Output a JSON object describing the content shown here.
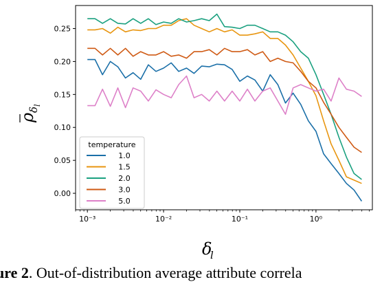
{
  "chart_data": {
    "type": "line",
    "xlabel_base": "δ",
    "xlabel_sub": "l",
    "ylabel_base": "ρ",
    "ylabel_sub": "δ",
    "ylabel_subsub": "l",
    "xscale": "log",
    "xlim": [
      0.0007,
      5.5
    ],
    "ylim": [
      -0.025,
      0.285
    ],
    "x_ticks": [
      {
        "v": 0.001,
        "label": "10⁻³"
      },
      {
        "v": 0.01,
        "label": "10⁻²"
      },
      {
        "v": 0.1,
        "label": "10⁻¹"
      },
      {
        "v": 1,
        "label": "10⁰"
      }
    ],
    "y_ticks": [
      {
        "v": 0.0,
        "label": "0.00"
      },
      {
        "v": 0.05,
        "label": "0.05"
      },
      {
        "v": 0.1,
        "label": "0.10"
      },
      {
        "v": 0.15,
        "label": "0.15"
      },
      {
        "v": 0.2,
        "label": "0.20"
      },
      {
        "v": 0.25,
        "label": "0.25"
      }
    ],
    "grid": false,
    "legend": {
      "title": "temperature",
      "location": "lower-left"
    },
    "x": [
      0.001,
      0.00126,
      0.00158,
      0.002,
      0.00251,
      0.00316,
      0.00398,
      0.00501,
      0.00631,
      0.00794,
      0.01,
      0.0126,
      0.0158,
      0.02,
      0.0251,
      0.0316,
      0.0398,
      0.0501,
      0.0631,
      0.0794,
      0.1,
      0.126,
      0.158,
      0.2,
      0.251,
      0.316,
      0.398,
      0.501,
      0.631,
      0.794,
      1.0,
      1.26,
      1.58,
      2.0,
      2.51,
      3.16,
      3.98
    ],
    "series": [
      {
        "name": "1.0",
        "color": "#1a6fa8",
        "values": [
          0.203,
          0.203,
          0.18,
          0.2,
          0.192,
          0.175,
          0.183,
          0.173,
          0.195,
          0.185,
          0.19,
          0.198,
          0.185,
          0.19,
          0.182,
          0.193,
          0.192,
          0.196,
          0.195,
          0.188,
          0.17,
          0.178,
          0.172,
          0.155,
          0.18,
          0.165,
          0.137,
          0.152,
          0.135,
          0.11,
          0.094,
          0.06,
          0.045,
          0.03,
          0.015,
          0.005,
          -0.012
        ]
      },
      {
        "name": "1.5",
        "color": "#e8950f",
        "values": [
          0.248,
          0.248,
          0.25,
          0.243,
          0.252,
          0.245,
          0.248,
          0.247,
          0.25,
          0.25,
          0.255,
          0.255,
          0.262,
          0.265,
          0.255,
          0.25,
          0.245,
          0.25,
          0.245,
          0.248,
          0.24,
          0.24,
          0.242,
          0.245,
          0.235,
          0.235,
          0.225,
          0.21,
          0.19,
          0.17,
          0.148,
          0.11,
          0.075,
          0.05,
          0.025,
          0.02,
          0.015
        ]
      },
      {
        "name": "2.0",
        "color": "#1aa07f",
        "values": [
          0.265,
          0.265,
          0.258,
          0.265,
          0.258,
          0.257,
          0.265,
          0.258,
          0.265,
          0.256,
          0.26,
          0.258,
          0.265,
          0.26,
          0.262,
          0.265,
          0.262,
          0.272,
          0.253,
          0.252,
          0.25,
          0.255,
          0.255,
          0.25,
          0.245,
          0.245,
          0.24,
          0.23,
          0.215,
          0.205,
          0.18,
          0.15,
          0.12,
          0.085,
          0.055,
          0.03,
          0.021
        ]
      },
      {
        "name": "3.0",
        "color": "#cf5a14",
        "values": [
          0.22,
          0.22,
          0.21,
          0.22,
          0.21,
          0.22,
          0.208,
          0.215,
          0.21,
          0.21,
          0.215,
          0.208,
          0.21,
          0.205,
          0.215,
          0.215,
          0.218,
          0.21,
          0.22,
          0.215,
          0.215,
          0.218,
          0.21,
          0.215,
          0.2,
          0.205,
          0.2,
          0.198,
          0.185,
          0.17,
          0.16,
          0.138,
          0.12,
          0.1,
          0.085,
          0.07,
          0.062
        ]
      },
      {
        "name": "5.0",
        "color": "#dd80c8",
        "values": [
          0.133,
          0.133,
          0.158,
          0.132,
          0.16,
          0.13,
          0.16,
          0.155,
          0.14,
          0.157,
          0.15,
          0.145,
          0.165,
          0.178,
          0.145,
          0.15,
          0.14,
          0.155,
          0.14,
          0.155,
          0.14,
          0.158,
          0.14,
          0.155,
          0.16,
          0.14,
          0.12,
          0.16,
          0.165,
          0.16,
          0.155,
          0.158,
          0.14,
          0.175,
          0.158,
          0.155,
          0.147
        ]
      }
    ]
  },
  "caption": {
    "bold": "ure 2",
    "rest": ". Out-of-distribution average attribute correla"
  }
}
